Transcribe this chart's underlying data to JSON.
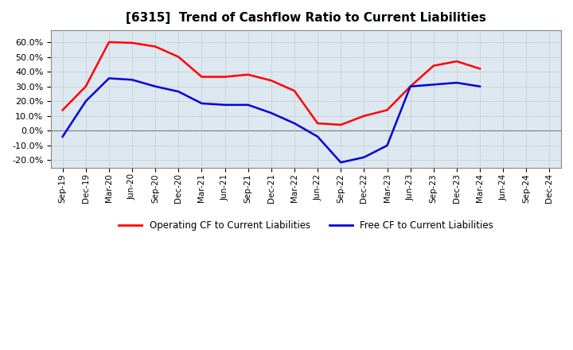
{
  "title": "[6315]  Trend of Cashflow Ratio to Current Liabilities",
  "x_labels": [
    "Sep-19",
    "Dec-19",
    "Mar-20",
    "Jun-20",
    "Sep-20",
    "Dec-20",
    "Mar-21",
    "Jun-21",
    "Sep-21",
    "Dec-21",
    "Mar-22",
    "Jun-22",
    "Sep-22",
    "Dec-22",
    "Mar-23",
    "Jun-23",
    "Sep-23",
    "Dec-23",
    "Mar-24",
    "Jun-24",
    "Sep-24",
    "Dec-24"
  ],
  "operating_cf_color": "#ff0000",
  "free_cf_color": "#0000dd",
  "background_color": "#ffffff",
  "plot_bg_color": "#dde8f0",
  "ylim": [
    -0.25,
    0.68
  ],
  "yticks": [
    -0.2,
    -0.1,
    0.0,
    0.1,
    0.2,
    0.3,
    0.4,
    0.5,
    0.6
  ],
  "legend_operating": "Operating CF to Current Liabilities",
  "legend_free": "Free CF to Current Liabilities",
  "op_indices": [
    0,
    1,
    2,
    3,
    4,
    5,
    6,
    7,
    8,
    9,
    10,
    11,
    12,
    13,
    14,
    15,
    16,
    17,
    18
  ],
  "op_values": [
    0.14,
    0.3,
    0.6,
    0.595,
    0.57,
    0.5,
    0.365,
    0.365,
    0.38,
    0.34,
    0.27,
    0.05,
    0.04,
    0.1,
    0.14,
    0.3,
    0.44,
    0.47,
    0.42
  ],
  "fr_indices": [
    0,
    1,
    2,
    3,
    4,
    5,
    6,
    7,
    8,
    9,
    10,
    11,
    12,
    13,
    14,
    15,
    17,
    18
  ],
  "fr_values": [
    -0.04,
    0.2,
    0.355,
    0.345,
    0.3,
    0.265,
    0.185,
    0.175,
    0.175,
    0.12,
    0.05,
    -0.04,
    -0.215,
    -0.18,
    -0.1,
    0.3,
    0.325,
    0.3
  ]
}
